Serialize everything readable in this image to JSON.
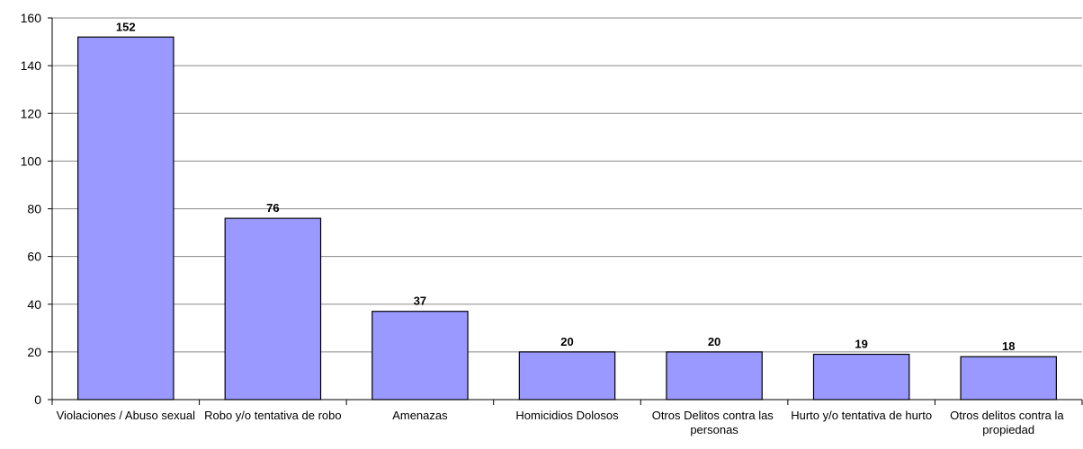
{
  "chart_data": {
    "type": "bar",
    "categories": [
      "Violaciones / Abuso sexual",
      "Robo y/o tentativa de robo",
      "Amenazas",
      "Homicidios Dolosos",
      "Otros Delitos contra las personas",
      "Hurto y/o tentativa de hurto",
      "Otros delitos contra la propiedad"
    ],
    "values": [
      152,
      76,
      37,
      20,
      20,
      19,
      18
    ],
    "color": "#9999ff",
    "ylim": [
      0,
      160
    ],
    "yticks": [
      0,
      20,
      40,
      60,
      80,
      100,
      120,
      140,
      160
    ],
    "grid": true
  }
}
